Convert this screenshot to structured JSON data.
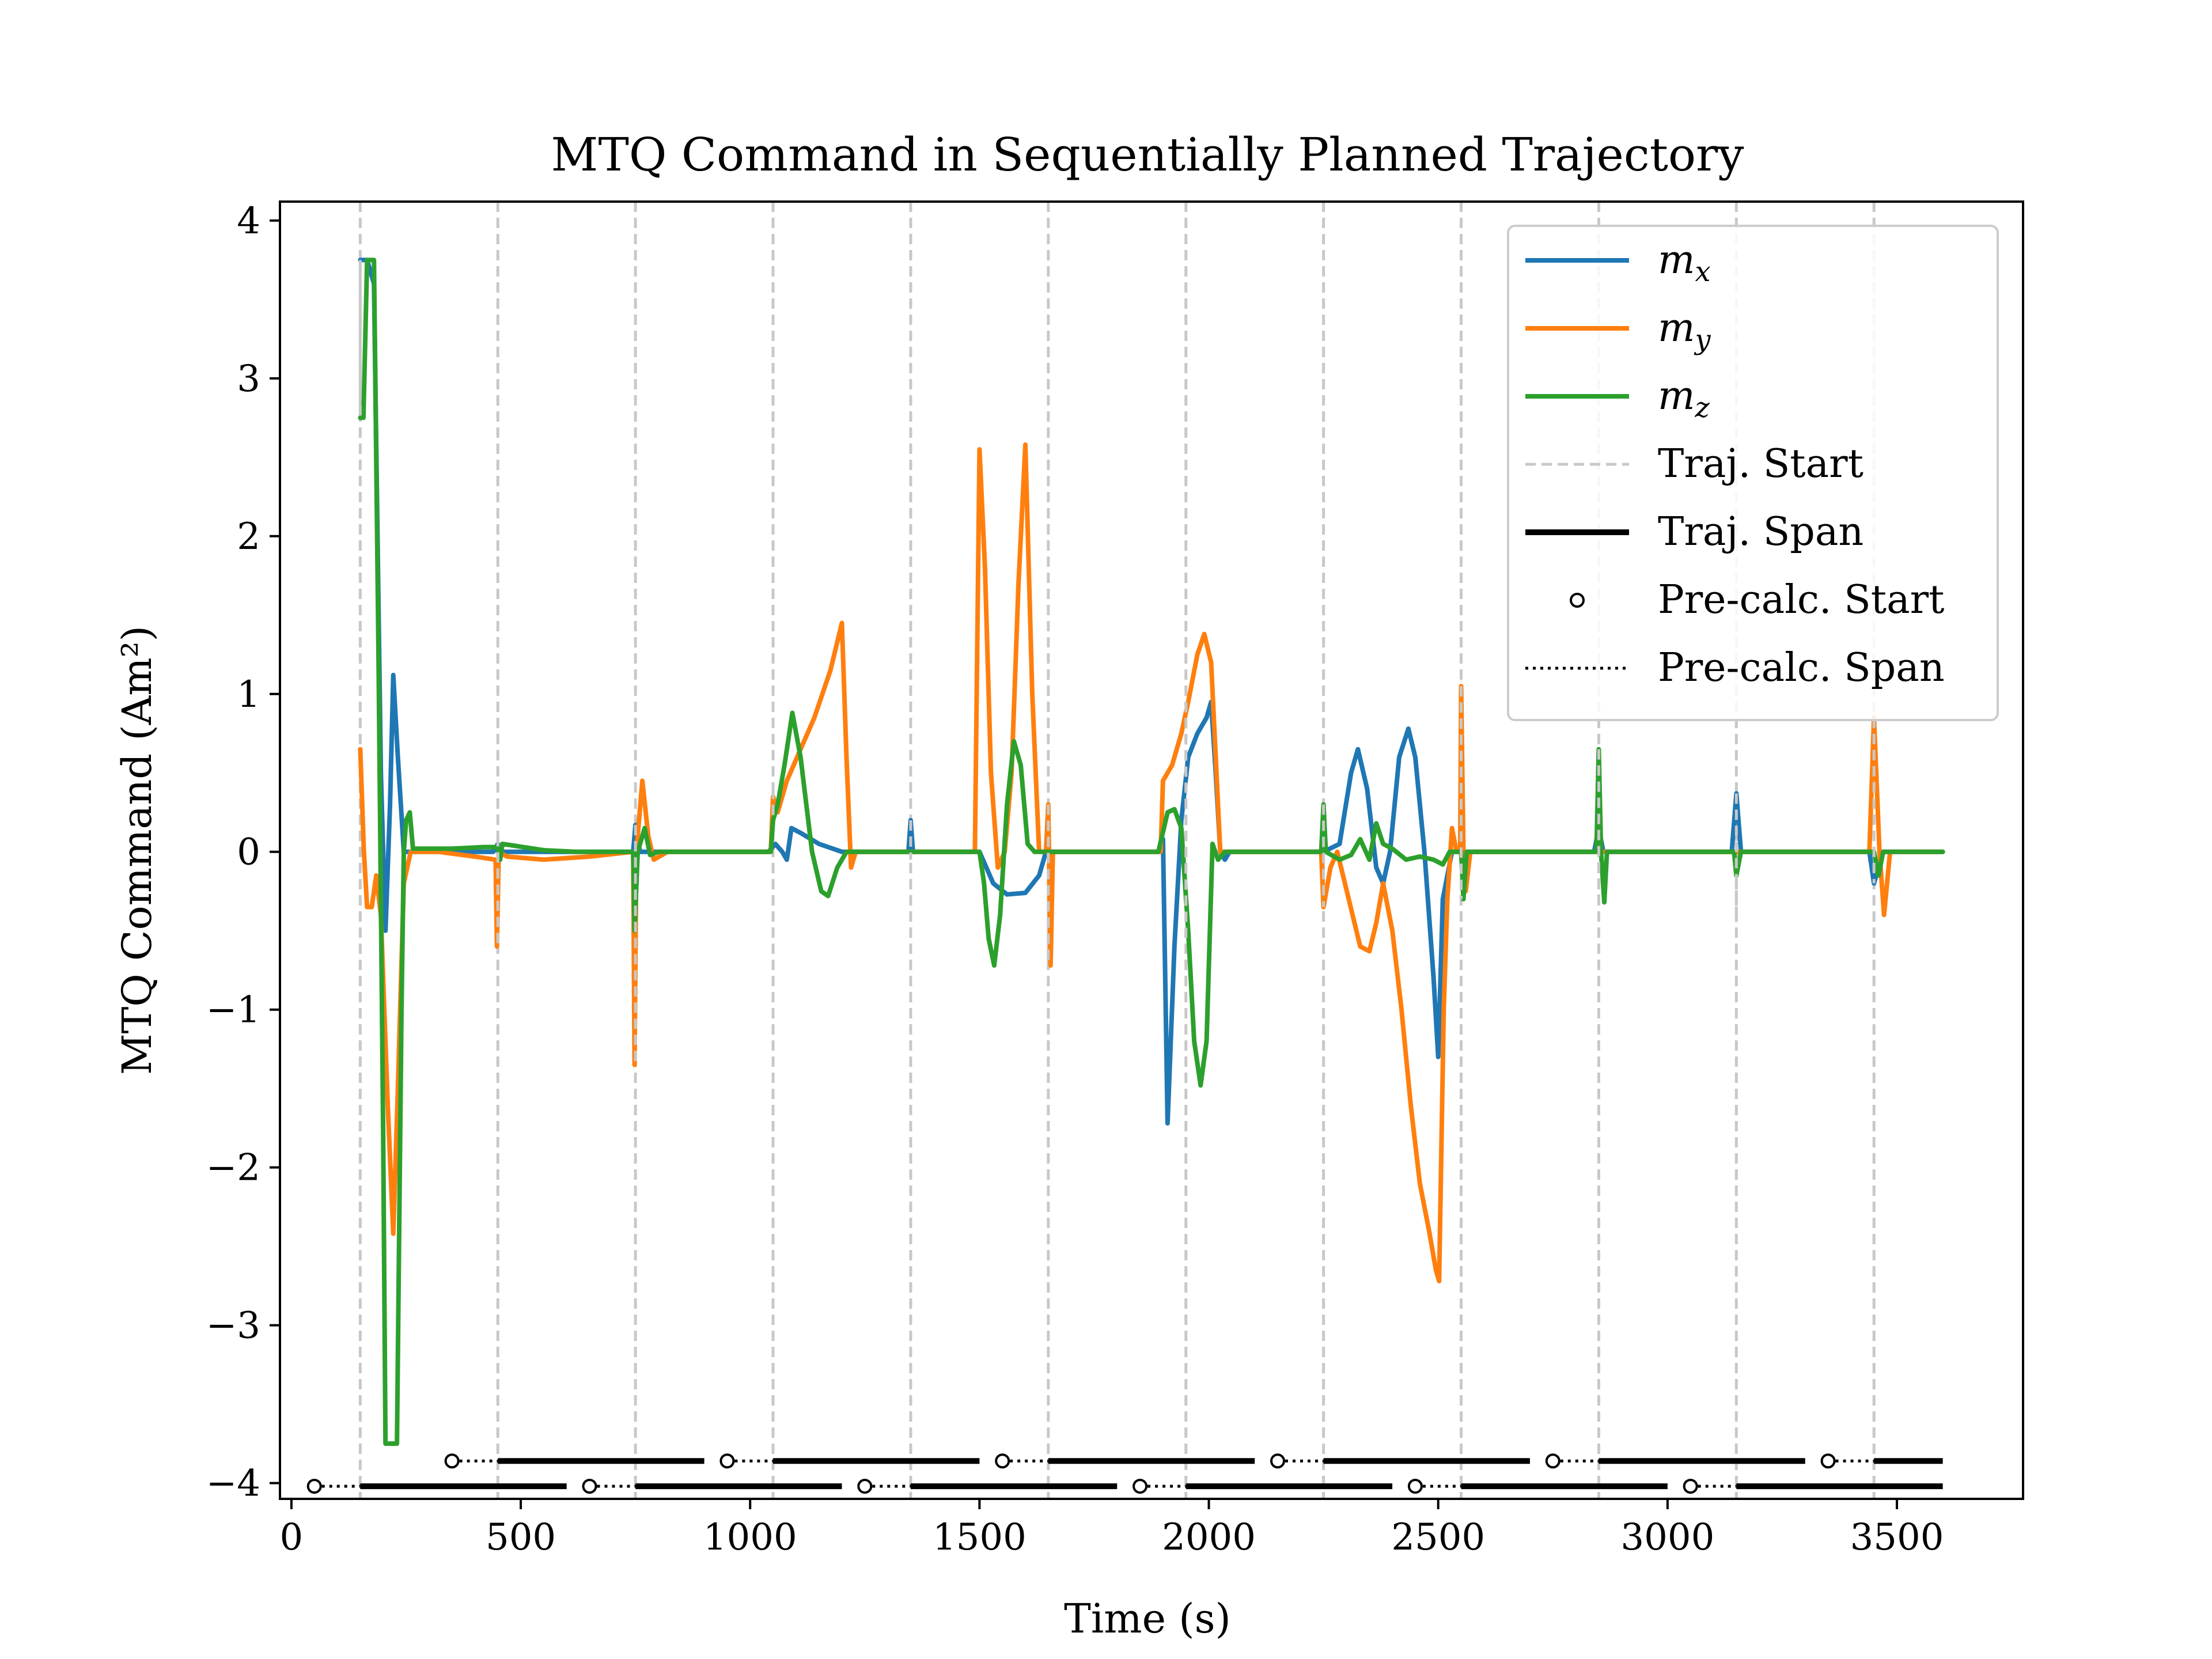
{
  "chart_data": {
    "type": "line",
    "title": "MTQ Command in Sequentially Planned Trajectory",
    "xlabel": "Time (s)",
    "ylabel": "MTQ Command (Am²)",
    "xlim": [
      -25,
      3775
    ],
    "ylim": [
      -4.1,
      4.12
    ],
    "xticks": [
      0,
      500,
      1000,
      1500,
      2000,
      2500,
      3000,
      3500
    ],
    "yticks": [
      4,
      3,
      2,
      1,
      0,
      -1,
      -2,
      -3,
      -4
    ],
    "ytick_labels": [
      "4",
      "3",
      "2",
      "1",
      "0",
      "−1",
      "−2",
      "−3",
      "−4"
    ],
    "grid": false,
    "legend_position": "top-right",
    "colors": {
      "mx": "#1f77b4",
      "my": "#ff7f0e",
      "mz": "#2ca02c",
      "traj_start": "#c8c8c8",
      "span": "#000000"
    },
    "legend": [
      {
        "key": "mx",
        "label": "m",
        "sub": "x",
        "style": "solid",
        "color": "#1f77b4"
      },
      {
        "key": "my",
        "label": "m",
        "sub": "y",
        "style": "solid",
        "color": "#ff7f0e"
      },
      {
        "key": "mz",
        "label": "m",
        "sub": "z",
        "style": "solid",
        "color": "#2ca02c"
      },
      {
        "key": "traj_start",
        "label": "Traj. Start",
        "style": "dashed",
        "color": "#c8c8c8"
      },
      {
        "key": "traj_span",
        "label": "Traj. Span",
        "style": "thick",
        "color": "#000000"
      },
      {
        "key": "pre_start",
        "label": "Pre-calc. Start",
        "style": "marker",
        "color": "#000000"
      },
      {
        "key": "pre_span",
        "label": "Pre-calc. Span",
        "style": "dotted",
        "color": "#000000"
      }
    ],
    "traj_start_times": [
      150,
      450,
      750,
      1050,
      1350,
      1650,
      1950,
      2250,
      2550,
      2850,
      3150,
      3450
    ],
    "spans": [
      {
        "row": -4.02,
        "pre_start": 50,
        "traj_start": 150,
        "end": 600
      },
      {
        "row": -4.02,
        "pre_start": 650,
        "traj_start": 750,
        "end": 1200
      },
      {
        "row": -4.02,
        "pre_start": 1250,
        "traj_start": 1350,
        "end": 1800
      },
      {
        "row": -4.02,
        "pre_start": 1850,
        "traj_start": 1950,
        "end": 2400
      },
      {
        "row": -4.02,
        "pre_start": 2450,
        "traj_start": 2550,
        "end": 3000
      },
      {
        "row": -4.02,
        "pre_start": 3050,
        "traj_start": 3150,
        "end": 3600
      },
      {
        "row": -3.86,
        "pre_start": 350,
        "traj_start": 450,
        "end": 900
      },
      {
        "row": -3.86,
        "pre_start": 950,
        "traj_start": 1050,
        "end": 1500
      },
      {
        "row": -3.86,
        "pre_start": 1550,
        "traj_start": 1650,
        "end": 2100
      },
      {
        "row": -3.86,
        "pre_start": 2150,
        "traj_start": 2250,
        "end": 2700
      },
      {
        "row": -3.86,
        "pre_start": 2750,
        "traj_start": 2850,
        "end": 3300
      },
      {
        "row": -3.86,
        "pre_start": 3350,
        "traj_start": 3450,
        "end": 3600
      }
    ],
    "series": [
      {
        "name": "m_x",
        "color": "#1f77b4",
        "points": [
          [
            150,
            3.75
          ],
          [
            165,
            3.75
          ],
          [
            180,
            3.6
          ],
          [
            195,
            0.5
          ],
          [
            205,
            -0.5
          ],
          [
            215,
            0.3
          ],
          [
            222,
            1.12
          ],
          [
            232,
            0.6
          ],
          [
            245,
            0.0
          ],
          [
            260,
            0.0
          ],
          [
            440,
            0.0
          ],
          [
            450,
            0.05
          ],
          [
            455,
            0.0
          ],
          [
            745,
            0.0
          ],
          [
            750,
            0.17
          ],
          [
            760,
            0.0
          ],
          [
            1040,
            0.0
          ],
          [
            1055,
            0.05
          ],
          [
            1070,
            0.0
          ],
          [
            1080,
            -0.05
          ],
          [
            1090,
            0.15
          ],
          [
            1110,
            0.12
          ],
          [
            1150,
            0.05
          ],
          [
            1200,
            0.0
          ],
          [
            1345,
            0.0
          ],
          [
            1350,
            0.2
          ],
          [
            1355,
            0.0
          ],
          [
            1500,
            0.0
          ],
          [
            1530,
            -0.2
          ],
          [
            1560,
            -0.27
          ],
          [
            1600,
            -0.26
          ],
          [
            1630,
            -0.15
          ],
          [
            1645,
            0.0
          ],
          [
            1890,
            0.0
          ],
          [
            1900,
            0.08
          ],
          [
            1910,
            -1.72
          ],
          [
            1925,
            -0.6
          ],
          [
            1940,
            0.2
          ],
          [
            1955,
            0.6
          ],
          [
            1975,
            0.75
          ],
          [
            1995,
            0.85
          ],
          [
            2005,
            0.95
          ],
          [
            2015,
            0.5
          ],
          [
            2025,
            0.0
          ],
          [
            2035,
            -0.05
          ],
          [
            2045,
            0.0
          ],
          [
            2250,
            0.0
          ],
          [
            2285,
            0.05
          ],
          [
            2310,
            0.5
          ],
          [
            2325,
            0.65
          ],
          [
            2345,
            0.4
          ],
          [
            2365,
            -0.1
          ],
          [
            2380,
            -0.2
          ],
          [
            2395,
            0.0
          ],
          [
            2415,
            0.6
          ],
          [
            2435,
            0.78
          ],
          [
            2450,
            0.6
          ],
          [
            2470,
            0.0
          ],
          [
            2490,
            -0.8
          ],
          [
            2500,
            -1.3
          ],
          [
            2510,
            -0.3
          ],
          [
            2530,
            0.0
          ],
          [
            2840,
            0.0
          ],
          [
            2850,
            0.15
          ],
          [
            2860,
            0.0
          ],
          [
            3140,
            0.0
          ],
          [
            3150,
            0.37
          ],
          [
            3160,
            0.0
          ],
          [
            3440,
            0.0
          ],
          [
            3450,
            -0.2
          ],
          [
            3470,
            0.0
          ],
          [
            3600,
            0.0
          ]
        ]
      },
      {
        "name": "m_y",
        "color": "#ff7f0e",
        "points": [
          [
            150,
            0.65
          ],
          [
            158,
            0.0
          ],
          [
            165,
            -0.35
          ],
          [
            175,
            -0.35
          ],
          [
            185,
            -0.15
          ],
          [
            195,
            -0.4
          ],
          [
            210,
            -1.6
          ],
          [
            222,
            -2.42
          ],
          [
            232,
            -1.5
          ],
          [
            245,
            -0.2
          ],
          [
            260,
            0.0
          ],
          [
            320,
            0.0
          ],
          [
            400,
            -0.03
          ],
          [
            445,
            -0.05
          ],
          [
            448,
            -0.6
          ],
          [
            452,
            0.0
          ],
          [
            470,
            -0.03
          ],
          [
            550,
            -0.05
          ],
          [
            650,
            -0.03
          ],
          [
            745,
            0.0
          ],
          [
            748,
            -1.35
          ],
          [
            752,
            0.0
          ],
          [
            765,
            0.45
          ],
          [
            778,
            0.1
          ],
          [
            790,
            -0.05
          ],
          [
            820,
            0.0
          ],
          [
            1045,
            0.0
          ],
          [
            1050,
            0.35
          ],
          [
            1060,
            0.25
          ],
          [
            1080,
            0.45
          ],
          [
            1110,
            0.65
          ],
          [
            1140,
            0.85
          ],
          [
            1175,
            1.15
          ],
          [
            1200,
            1.45
          ],
          [
            1210,
            0.6
          ],
          [
            1220,
            -0.1
          ],
          [
            1230,
            0.0
          ],
          [
            1490,
            0.0
          ],
          [
            1500,
            2.55
          ],
          [
            1512,
            1.8
          ],
          [
            1525,
            0.5
          ],
          [
            1540,
            -0.1
          ],
          [
            1555,
            0.0
          ],
          [
            1570,
            0.5
          ],
          [
            1585,
            1.7
          ],
          [
            1600,
            2.58
          ],
          [
            1615,
            1.0
          ],
          [
            1630,
            0.0
          ],
          [
            1645,
            0.0
          ],
          [
            1650,
            0.3
          ],
          [
            1655,
            -0.72
          ],
          [
            1660,
            0.0
          ],
          [
            1895,
            0.0
          ],
          [
            1900,
            0.45
          ],
          [
            1920,
            0.55
          ],
          [
            1940,
            0.75
          ],
          [
            1955,
            0.95
          ],
          [
            1975,
            1.25
          ],
          [
            1990,
            1.38
          ],
          [
            2005,
            1.2
          ],
          [
            2015,
            0.6
          ],
          [
            2025,
            0.0
          ],
          [
            2045,
            0.0
          ],
          [
            2245,
            0.0
          ],
          [
            2250,
            -0.35
          ],
          [
            2265,
            -0.1
          ],
          [
            2280,
            0.0
          ],
          [
            2305,
            -0.3
          ],
          [
            2330,
            -0.6
          ],
          [
            2350,
            -0.63
          ],
          [
            2365,
            -0.45
          ],
          [
            2380,
            -0.2
          ],
          [
            2400,
            -0.5
          ],
          [
            2420,
            -1.0
          ],
          [
            2440,
            -1.6
          ],
          [
            2460,
            -2.1
          ],
          [
            2480,
            -2.4
          ],
          [
            2495,
            -2.65
          ],
          [
            2502,
            -2.72
          ],
          [
            2512,
            -1.0
          ],
          [
            2520,
            -0.3
          ],
          [
            2530,
            0.15
          ],
          [
            2540,
            0.0
          ],
          [
            2548,
            0.0
          ],
          [
            2550,
            1.05
          ],
          [
            2555,
            0.0
          ],
          [
            2560,
            -0.25
          ],
          [
            2570,
            0.0
          ],
          [
            3440,
            0.0
          ],
          [
            3450,
            0.85
          ],
          [
            3462,
            0.0
          ],
          [
            3472,
            -0.4
          ],
          [
            3485,
            0.0
          ],
          [
            3600,
            0.0
          ]
        ]
      },
      {
        "name": "m_z",
        "color": "#2ca02c",
        "points": [
          [
            150,
            2.75
          ],
          [
            157,
            2.75
          ],
          [
            165,
            3.75
          ],
          [
            180,
            3.75
          ],
          [
            190,
            1.2
          ],
          [
            200,
            -1.8
          ],
          [
            205,
            -3.75
          ],
          [
            230,
            -3.75
          ],
          [
            240,
            -1.0
          ],
          [
            245,
            0.0
          ],
          [
            250,
            0.2
          ],
          [
            258,
            0.25
          ],
          [
            265,
            0.02
          ],
          [
            280,
            0.02
          ],
          [
            350,
            0.02
          ],
          [
            420,
            0.03
          ],
          [
            448,
            0.03
          ],
          [
            455,
            -0.05
          ],
          [
            460,
            0.05
          ],
          [
            550,
            0.01
          ],
          [
            620,
            0.0
          ],
          [
            700,
            0.0
          ],
          [
            745,
            0.0
          ],
          [
            748,
            -0.5
          ],
          [
            755,
            0.0
          ],
          [
            770,
            0.15
          ],
          [
            782,
            -0.02
          ],
          [
            800,
            0.0
          ],
          [
            1045,
            0.0
          ],
          [
            1050,
            0.2
          ],
          [
            1060,
            0.3
          ],
          [
            1075,
            0.55
          ],
          [
            1092,
            0.88
          ],
          [
            1110,
            0.6
          ],
          [
            1135,
            0.0
          ],
          [
            1155,
            -0.25
          ],
          [
            1170,
            -0.28
          ],
          [
            1190,
            -0.1
          ],
          [
            1210,
            0.0
          ],
          [
            1250,
            0.0
          ],
          [
            1500,
            0.0
          ],
          [
            1510,
            -0.2
          ],
          [
            1520,
            -0.55
          ],
          [
            1532,
            -0.72
          ],
          [
            1545,
            -0.4
          ],
          [
            1560,
            0.3
          ],
          [
            1575,
            0.7
          ],
          [
            1590,
            0.55
          ],
          [
            1605,
            0.05
          ],
          [
            1620,
            0.0
          ],
          [
            1890,
            0.0
          ],
          [
            1910,
            0.25
          ],
          [
            1925,
            0.27
          ],
          [
            1940,
            0.15
          ],
          [
            1955,
            -0.5
          ],
          [
            1968,
            -1.2
          ],
          [
            1982,
            -1.48
          ],
          [
            1995,
            -1.2
          ],
          [
            2008,
            0.05
          ],
          [
            2020,
            -0.05
          ],
          [
            2035,
            0.0
          ],
          [
            2245,
            0.0
          ],
          [
            2250,
            0.3
          ],
          [
            2255,
            0.0
          ],
          [
            2285,
            -0.05
          ],
          [
            2310,
            -0.02
          ],
          [
            2330,
            0.08
          ],
          [
            2350,
            -0.05
          ],
          [
            2365,
            0.18
          ],
          [
            2380,
            0.05
          ],
          [
            2400,
            0.02
          ],
          [
            2430,
            -0.05
          ],
          [
            2460,
            -0.03
          ],
          [
            2490,
            -0.05
          ],
          [
            2510,
            -0.08
          ],
          [
            2525,
            0.0
          ],
          [
            2550,
            0.0
          ],
          [
            2555,
            -0.3
          ],
          [
            2562,
            0.0
          ],
          [
            2845,
            0.0
          ],
          [
            2850,
            0.65
          ],
          [
            2855,
            0.0
          ],
          [
            2862,
            -0.32
          ],
          [
            2868,
            0.0
          ],
          [
            3145,
            0.0
          ],
          [
            3150,
            -0.15
          ],
          [
            3160,
            0.0
          ],
          [
            3450,
            0.0
          ],
          [
            3460,
            -0.15
          ],
          [
            3470,
            0.0
          ],
          [
            3600,
            0.0
          ]
        ]
      }
    ],
    "start_marks": [
      [
        150,
        2.75,
        3.75
      ],
      [
        450,
        -0.6,
        0.1
      ],
      [
        750,
        -1.35,
        0.17
      ],
      [
        1050,
        0.2,
        0.4
      ],
      [
        1350,
        -0.05,
        0.2
      ],
      [
        1650,
        -0.72,
        0.3
      ],
      [
        1950,
        -0.55,
        0.95
      ],
      [
        2250,
        -0.35,
        0.3
      ],
      [
        2550,
        -0.3,
        1.05
      ],
      [
        2850,
        -0.3,
        0.65
      ],
      [
        3150,
        -0.45,
        0.37
      ],
      [
        3450,
        -0.2,
        0.85
      ]
    ]
  }
}
